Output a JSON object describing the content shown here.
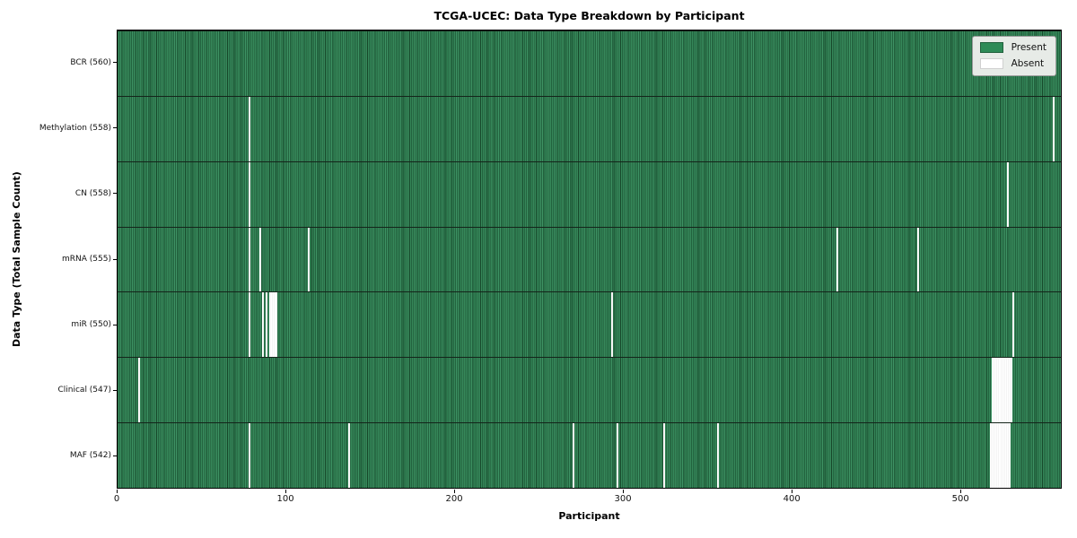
{
  "title": "TCGA-UCEC: Data Type Breakdown by Participant",
  "x_axis_label": "Participant",
  "y_axis_label": "Data Type (Total Sample Count)",
  "legend": {
    "present_label": "Present",
    "absent_label": "Absent"
  },
  "colors": {
    "present": "#2e8b57",
    "absent": "#ffffff"
  },
  "chart_data": {
    "type": "heatmap",
    "title": "TCGA-UCEC: Data Type Breakdown by Participant",
    "xlabel": "Participant",
    "ylabel": "Data Type (Total Sample Count)",
    "x_range": [
      0,
      560
    ],
    "x_ticks": [
      0,
      100,
      200,
      300,
      400,
      500
    ],
    "total_participants": 560,
    "grid": false,
    "legend_entries": [
      "Present",
      "Absent"
    ],
    "legend_position": "upper right",
    "rows": [
      {
        "label": "BCR (560)",
        "data_type": "BCR",
        "present_count": 560,
        "absent_count": 0,
        "absent_participants": []
      },
      {
        "label": "Methylation (558)",
        "data_type": "Methylation",
        "present_count": 558,
        "absent_count": 2,
        "absent_participants": [
          78,
          555
        ]
      },
      {
        "label": "CN (558)",
        "data_type": "CN",
        "present_count": 558,
        "absent_count": 2,
        "absent_participants": [
          78,
          528
        ]
      },
      {
        "label": "mRNA (555)",
        "data_type": "mRNA",
        "present_count": 555,
        "absent_count": 5,
        "absent_participants": [
          78,
          84,
          113,
          427,
          475
        ]
      },
      {
        "label": "miR (550)",
        "data_type": "miR",
        "present_count": 550,
        "absent_count": 10,
        "absent_participants": [
          78,
          86,
          88,
          90,
          91,
          92,
          93,
          94,
          293,
          531
        ]
      },
      {
        "label": "Clinical (547)",
        "data_type": "Clinical",
        "present_count": 547,
        "absent_count": 13,
        "absent_participants": [
          12,
          519,
          520,
          521,
          522,
          523,
          524,
          525,
          526,
          527,
          528,
          529,
          530
        ]
      },
      {
        "label": "MAF (542)",
        "data_type": "MAF",
        "present_count": 542,
        "absent_count": 18,
        "absent_participants": [
          78,
          137,
          270,
          296,
          324,
          356,
          518,
          519,
          520,
          521,
          522,
          523,
          524,
          525,
          526,
          527,
          528,
          529
        ]
      }
    ]
  }
}
